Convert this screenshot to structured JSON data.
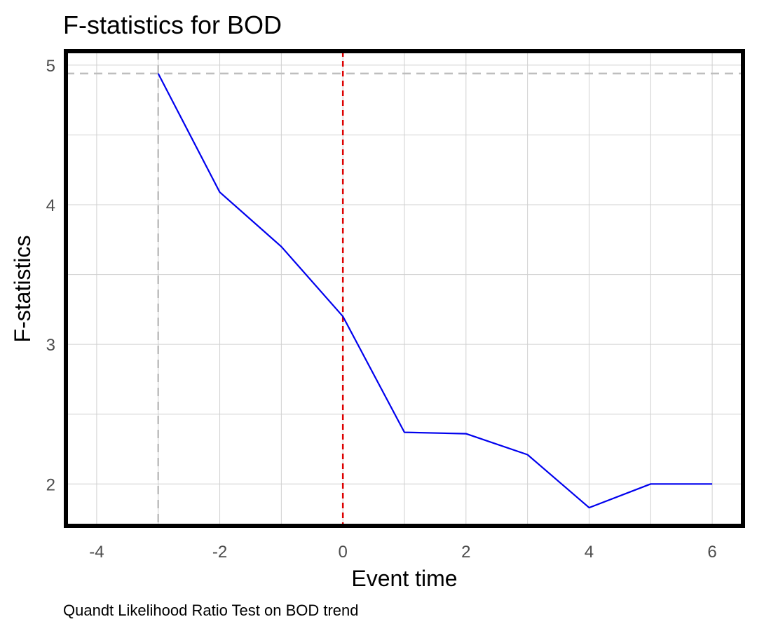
{
  "chart_data": {
    "type": "line",
    "title": "F-statistics for BOD",
    "xlabel": "Event time",
    "ylabel": "F-statistics",
    "caption": "Quandt Likelihood Ratio Test on BOD trend",
    "xlim": [
      -4.5,
      6.5
    ],
    "ylim": [
      1.7,
      5.1
    ],
    "x_ticks": [
      -4,
      -2,
      0,
      2,
      4,
      6
    ],
    "y_ticks": [
      2,
      3,
      4,
      5
    ],
    "x_tick_labels": [
      "-4",
      "-2",
      "0",
      "2",
      "4",
      "6"
    ],
    "y_tick_labels": [
      "2",
      "3",
      "4",
      "5"
    ],
    "grid": true,
    "series": [
      {
        "x": [
          -3,
          -2,
          -1,
          0,
          1,
          2,
          3,
          4,
          5,
          6
        ],
        "values": [
          4.94,
          4.09,
          3.7,
          3.2,
          2.37,
          2.36,
          2.21,
          1.83,
          2.0,
          2.0
        ]
      }
    ],
    "reference_lines": {
      "vertical_max": {
        "x": -3,
        "color": "#bebebe",
        "style": "dashed"
      },
      "vertical_event": {
        "x": 0,
        "color": "#dd0000",
        "style": "dashed"
      },
      "horizontal_max": {
        "y": 4.94,
        "color": "#bebebe",
        "style": "dashed"
      }
    },
    "colors": {
      "line": "#0000ee",
      "grid": "#d0d0d0",
      "border": "#000000"
    }
  }
}
